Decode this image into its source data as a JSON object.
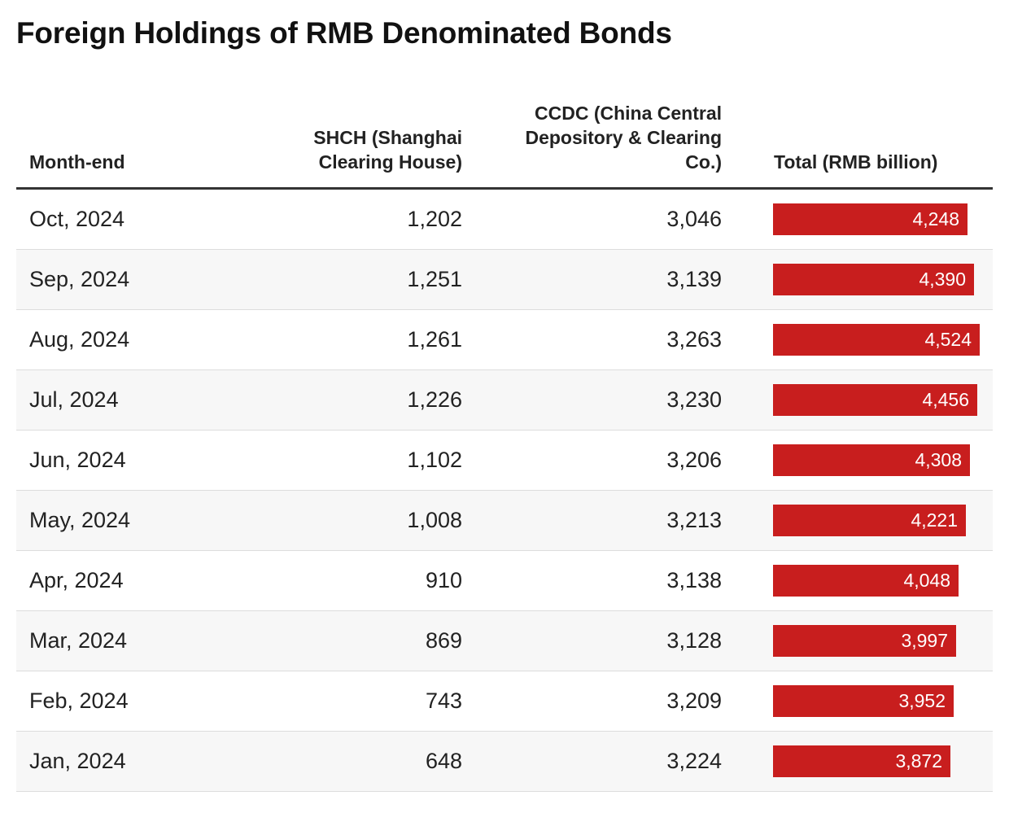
{
  "title": "Foreign Holdings of RMB Denominated Bonds",
  "headers": {
    "month": "Month-end",
    "shch_line1": "SHCH (Shanghai",
    "shch_line2": "Clearing House)",
    "ccdc_line1": "CCDC (China Central",
    "ccdc_line2": "Depository & Clearing",
    "ccdc_line3": "Co.)",
    "total": "Total (RMB billion)"
  },
  "colors": {
    "bar": "#c81e1e",
    "header_rule": "#333333",
    "alt_row": "#f7f7f7"
  },
  "chart_data": {
    "type": "table",
    "title": "Foreign Holdings of RMB Denominated Bonds",
    "columns": [
      "Month-end",
      "SHCH (Shanghai Clearing House)",
      "CCDC (China Central Depository & Clearing Co.)",
      "Total (RMB billion)"
    ],
    "bar_column": "Total (RMB billion)",
    "bar_scale_max": 4800,
    "rows": [
      {
        "month": "Oct, 2024",
        "shch": "1,202",
        "ccdc": "3,046",
        "total": "4,248",
        "total_value": 4248
      },
      {
        "month": "Sep, 2024",
        "shch": "1,251",
        "ccdc": "3,139",
        "total": "4,390",
        "total_value": 4390
      },
      {
        "month": "Aug, 2024",
        "shch": "1,261",
        "ccdc": "3,263",
        "total": "4,524",
        "total_value": 4524
      },
      {
        "month": "Jul, 2024",
        "shch": "1,226",
        "ccdc": "3,230",
        "total": "4,456",
        "total_value": 4456
      },
      {
        "month": "Jun, 2024",
        "shch": "1,102",
        "ccdc": "3,206",
        "total": "4,308",
        "total_value": 4308
      },
      {
        "month": "May, 2024",
        "shch": "1,008",
        "ccdc": "3,213",
        "total": "4,221",
        "total_value": 4221
      },
      {
        "month": "Apr, 2024",
        "shch": "910",
        "ccdc": "3,138",
        "total": "4,048",
        "total_value": 4048
      },
      {
        "month": "Mar, 2024",
        "shch": "869",
        "ccdc": "3,128",
        "total": "3,997",
        "total_value": 3997
      },
      {
        "month": "Feb, 2024",
        "shch": "743",
        "ccdc": "3,209",
        "total": "3,952",
        "total_value": 3952
      },
      {
        "month": "Jan, 2024",
        "shch": "648",
        "ccdc": "3,224",
        "total": "3,872",
        "total_value": 3872
      }
    ]
  }
}
